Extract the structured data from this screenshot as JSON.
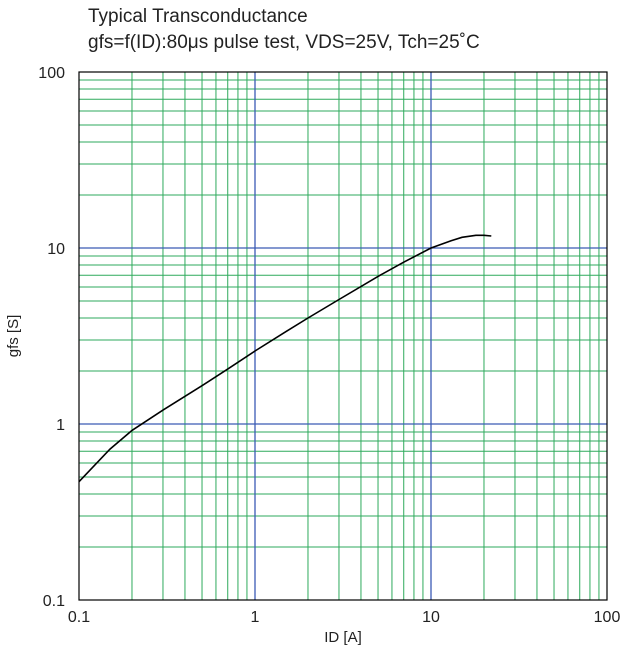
{
  "chart_data": {
    "type": "line",
    "title": "Typical Transconductance",
    "subtitle": "gfs=f(ID):80μs pulse test, VDS=25V, Tch=25˚C",
    "xlabel": "ID [A]",
    "ylabel": "gfs [S]",
    "xscale": "log",
    "yscale": "log",
    "xlim": [
      0.1,
      100
    ],
    "ylim": [
      0.1,
      100
    ],
    "x_ticks": [
      "0.1",
      "1",
      "10",
      "100"
    ],
    "y_ticks": [
      "0.1",
      "1",
      "10",
      "100"
    ],
    "grid": true,
    "series": [
      {
        "x": [
          0.1,
          0.15,
          0.2,
          0.3,
          0.5,
          0.7,
          1,
          1.5,
          2,
          3,
          5,
          7,
          10,
          13,
          15,
          18,
          20,
          22
        ],
        "y": [
          0.47,
          0.72,
          0.92,
          1.2,
          1.65,
          2.05,
          2.6,
          3.35,
          4.0,
          5.1,
          6.9,
          8.3,
          10.0,
          11.0,
          11.5,
          11.8,
          11.8,
          11.7
        ]
      }
    ],
    "colors": {
      "minor_grid": "#2eaa5c",
      "major_grid": "#3b5bb5",
      "curve": "#000000"
    }
  }
}
